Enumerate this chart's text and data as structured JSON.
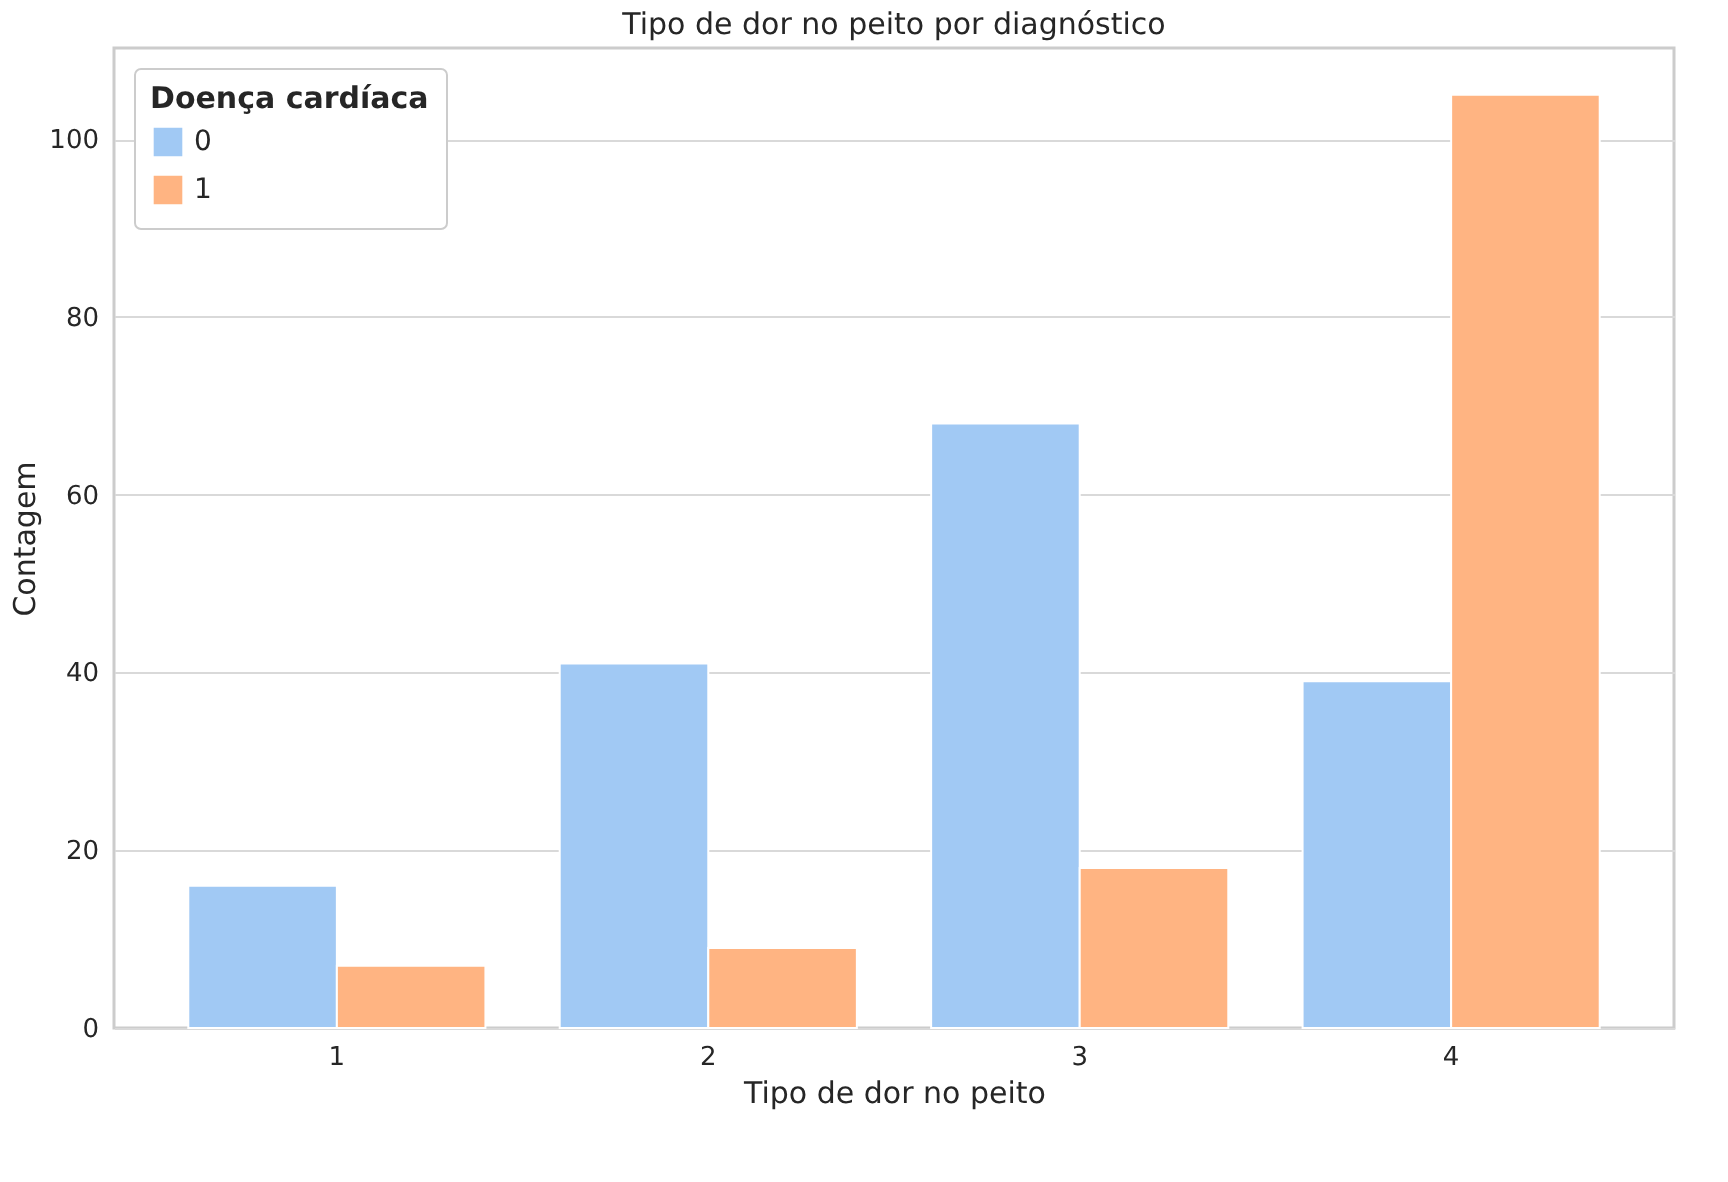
{
  "chart_data": {
    "type": "bar",
    "title": "Tipo de dor no peito por diagnóstico",
    "xlabel": "Tipo de dor no peito",
    "ylabel": "Contagem",
    "legend_title": "Doença cardíaca",
    "categories": [
      "1",
      "2",
      "3",
      "4"
    ],
    "series": [
      {
        "name": "0",
        "color": "#a1c9f4",
        "values": [
          16,
          41,
          68,
          39
        ]
      },
      {
        "name": "1",
        "color": "#ffb482",
        "values": [
          7,
          9,
          18,
          105
        ]
      }
    ],
    "ylim": [
      0,
      110.25
    ],
    "yticks": [
      0,
      20,
      40,
      60,
      80,
      100
    ],
    "grid": "y",
    "legend": "top left"
  }
}
